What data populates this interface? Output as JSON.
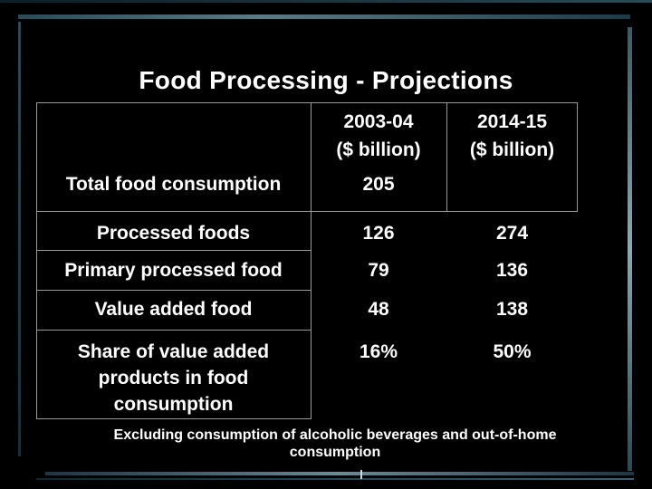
{
  "title": "Food Processing -  Projections",
  "columns": [
    {
      "year": "2003-04",
      "unit": "($ billion)"
    },
    {
      "year": "2014-15",
      "unit": "($ billion)"
    }
  ],
  "rows": [
    {
      "label": "Total food consumption",
      "v1": "205",
      "v2": ""
    },
    {
      "label": "Processed foods",
      "v1": "126",
      "v2": "274"
    },
    {
      "label": "Primary processed food",
      "v1": "79",
      "v2": "136"
    },
    {
      "label": "Value added food",
      "v1": "48",
      "v2": "138"
    },
    {
      "label": "Share of value added products in food consumption",
      "v1": "16%",
      "v2": "50%"
    }
  ],
  "footnote": "Excluding consumption of alcoholic beverages and out-of-home consumption",
  "colors": {
    "background": "#000000",
    "text": "#ffffff",
    "accent_bars": "#5a7a86"
  }
}
